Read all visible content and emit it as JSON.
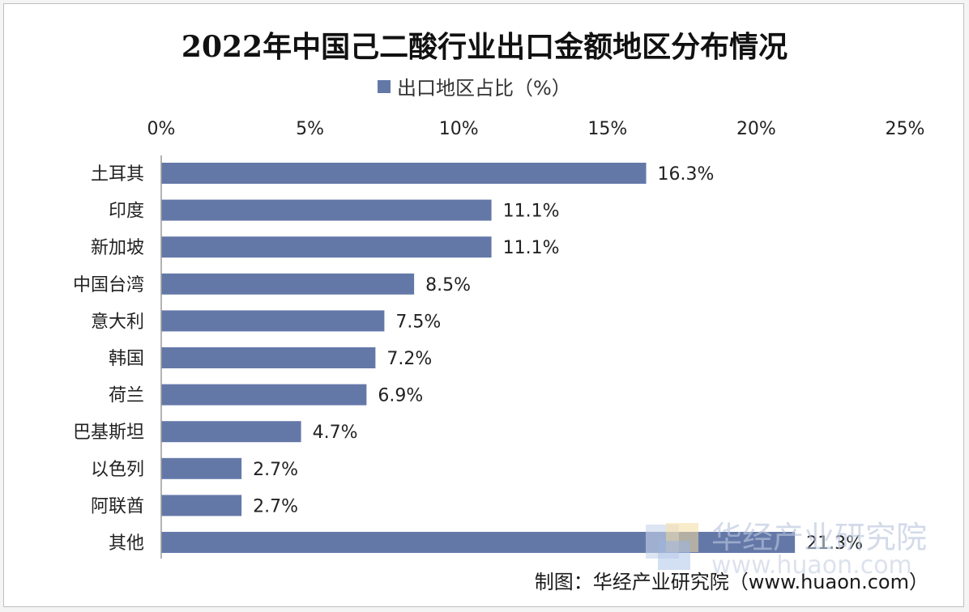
{
  "chart_data": {
    "type": "bar",
    "orientation": "horizontal",
    "title": "2022年中国己二酸行业出口金额地区分布情况",
    "series": [
      {
        "name": "出口地区占比（%）",
        "color": "#6478a8",
        "values": [
          16.3,
          11.1,
          11.1,
          8.5,
          7.5,
          7.2,
          6.9,
          4.7,
          2.7,
          2.7,
          21.3
        ],
        "labels": [
          "16.3%",
          "11.1%",
          "11.1%",
          "8.5%",
          "7.5%",
          "7.2%",
          "6.9%",
          "4.7%",
          "2.7%",
          "2.7%",
          "21.3%"
        ]
      }
    ],
    "categories": [
      "土耳其",
      "印度",
      "新加坡",
      "中国台湾",
      "意大利",
      "韩国",
      "荷兰",
      "巴基斯坦",
      "以色列",
      "阿联酋",
      "其他"
    ],
    "xlim": [
      0,
      25
    ],
    "xticks": [
      0,
      5,
      10,
      15,
      20,
      25
    ],
    "xtick_labels": [
      "0%",
      "5%",
      "10%",
      "15%",
      "20%",
      "25%"
    ],
    "x_axis_position": "top",
    "grid": false,
    "legend_position": "top"
  },
  "credit": "制图：华经产业研究院（www.huaon.com）",
  "watermark": {
    "text": "华经产业研究院",
    "url": "www.huaon.com",
    "icon": "huajing-logo-icon"
  }
}
